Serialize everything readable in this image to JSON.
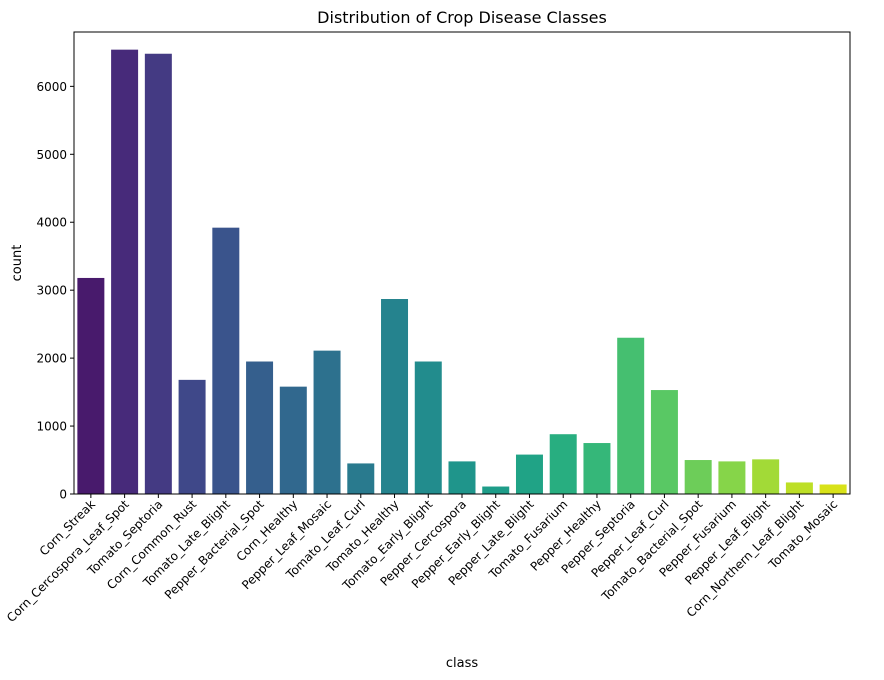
{
  "chart_data": {
    "type": "bar",
    "title": "Distribution of Crop Disease Classes",
    "xlabel": "class",
    "ylabel": "count",
    "ylim": [
      0,
      6800
    ],
    "yticks": [
      0,
      1000,
      2000,
      3000,
      4000,
      5000,
      6000
    ],
    "grid": false,
    "legend": "none",
    "palette": "viridis",
    "categories": [
      "Corn_Streak",
      "Corn_Cercospora_Leaf_Spot",
      "Tomato_Septoria",
      "Corn_Common_Rust",
      "Tomato_Late_Blight",
      "Pepper_Bacterial_Spot",
      "Corn_Healthy",
      "Pepper_Leaf_Mosaic",
      "Tomato_Leaf_Curl",
      "Tomato_Healthy",
      "Tomato_Early_Blight",
      "Pepper_Cercospora",
      "Pepper_Early_Blight",
      "Pepper_Late_Blight",
      "Tomato_Fusarium",
      "Pepper_Healthy",
      "Pepper_Septoria",
      "Pepper_Leaf_Curl",
      "Tomato_Bacterial_Spot",
      "Pepper_Fusarium",
      "Pepper_Leaf_Blight",
      "Corn_Northern_Leaf_Blight",
      "Tomato_Mosaic"
    ],
    "values": [
      3180,
      6540,
      6480,
      1680,
      3920,
      1950,
      1580,
      2110,
      450,
      2870,
      1950,
      480,
      110,
      580,
      880,
      750,
      2300,
      1530,
      500,
      480,
      510,
      170,
      140
    ],
    "colors": [
      "#481a6c",
      "#472a7a",
      "#443a83",
      "#3f4889",
      "#3a548c",
      "#355f8d",
      "#31688e",
      "#2d718e",
      "#297a8e",
      "#25838e",
      "#228c8d",
      "#1f958b",
      "#1e9d89",
      "#20a386",
      "#28ae80",
      "#35b779",
      "#45bf70",
      "#59c864",
      "#6dcd59",
      "#86d549",
      "#a2da37",
      "#bddf26",
      "#d8e219"
    ]
  }
}
